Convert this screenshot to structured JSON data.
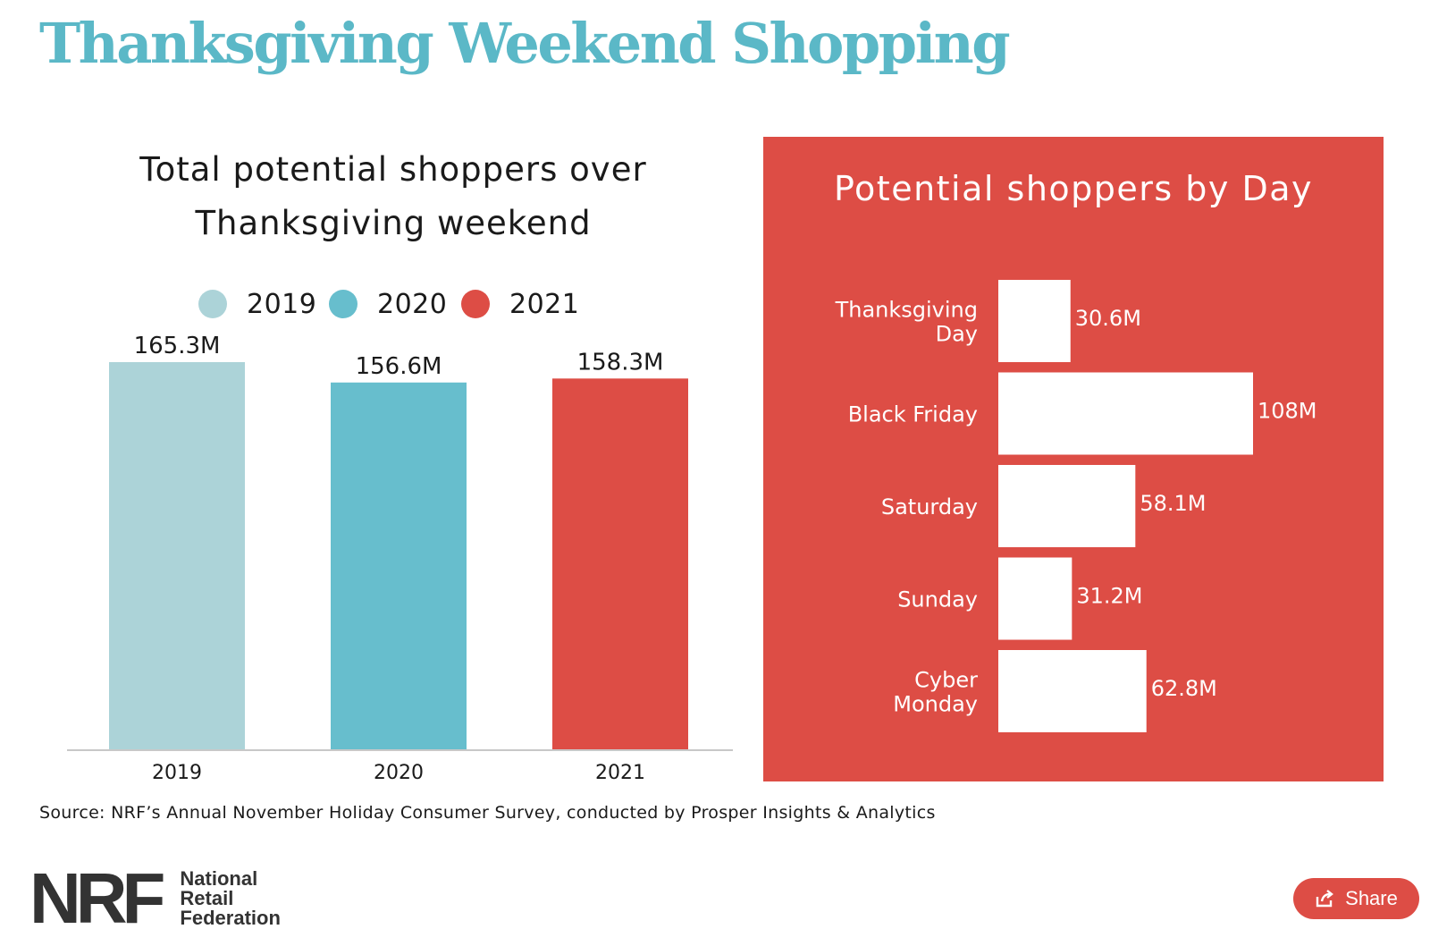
{
  "page_title": "Thanksgiving Weekend Shopping",
  "left_chart_title": [
    "Total potential shoppers over",
    "Thanksgiving weekend"
  ],
  "right_chart_title": "Potential shoppers by Day",
  "source": "Source: NRF’s Annual November Holiday Consumer Survey, conducted by Prosper Insights & Analytics",
  "logo": {
    "mark": "NRF",
    "words": [
      "National",
      "Retail",
      "Federation"
    ]
  },
  "share": {
    "label": "Share",
    "icon": "share-icon"
  },
  "colors": {
    "title": "#5bb8c7",
    "bar_2019": "#acd3d8",
    "bar_2020": "#67becd",
    "bar_2021": "#dd4d45",
    "panel": "#dd4d45"
  },
  "chart_data": [
    {
      "type": "bar",
      "title": "Total potential shoppers over Thanksgiving weekend",
      "categories": [
        "2019",
        "2020",
        "2021"
      ],
      "values": [
        165.3,
        156.6,
        158.3
      ],
      "data_labels": [
        "165.3M",
        "156.6M",
        "158.3M"
      ],
      "legend": [
        "2019",
        "2020",
        "2021"
      ],
      "legend_position": "top",
      "colors": [
        "#acd3d8",
        "#67becd",
        "#dd4d45"
      ],
      "grid": false
    },
    {
      "type": "bar",
      "orientation": "horizontal",
      "title": "Potential shoppers by Day",
      "categories": [
        "Thanksgiving Day",
        "Black Friday",
        "Saturday",
        "Sunday",
        "Cyber Monday"
      ],
      "category_lines": [
        [
          "Thanksgiving",
          "Day"
        ],
        [
          "Black Friday"
        ],
        [
          "Saturday"
        ],
        [
          "Sunday"
        ],
        [
          "Cyber",
          "Monday"
        ]
      ],
      "values": [
        30.6,
        108,
        58.1,
        31.2,
        62.8
      ],
      "data_labels": [
        "30.6M",
        "108M",
        "58.1M",
        "31.2M",
        "62.8M"
      ],
      "bar_color": "#ffffff",
      "grid": false
    }
  ]
}
